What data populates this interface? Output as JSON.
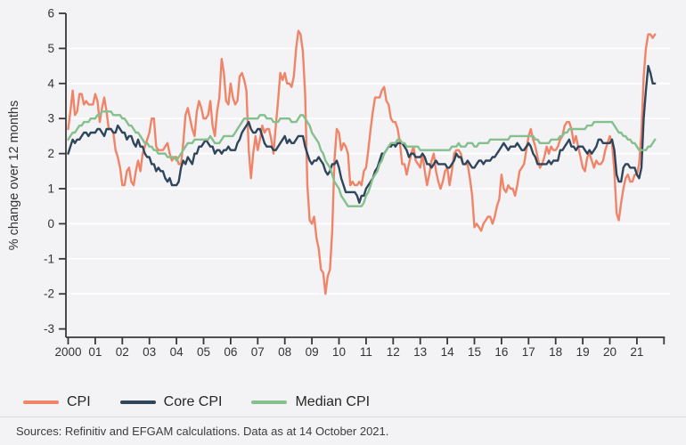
{
  "page": {
    "background": "#f3f3f5",
    "source_note": "Sources: Refinitiv and EFGAM calculations. Data as at 14 October 2021."
  },
  "chart_data": {
    "type": "line",
    "ylabel": "% change over 12 months",
    "ylim": [
      -3,
      6
    ],
    "yticks": [
      6,
      5,
      4,
      3,
      2,
      1,
      0,
      -1,
      -2,
      -3
    ],
    "xlim": [
      2000,
      2022
    ],
    "xtick_labels": [
      "2000",
      "01",
      "02",
      "03",
      "04",
      "05",
      "06",
      "07",
      "08",
      "09",
      "10",
      "11",
      "12",
      "13",
      "14",
      "15",
      "16",
      "17",
      "18",
      "19",
      "20",
      "21"
    ],
    "x_start": 2000.0,
    "x_step": "monthly",
    "grid": "horizontal-white",
    "legend_position": "bottom-left",
    "colors": {
      "background": "#f3f3f5",
      "gridline": "#ffffff",
      "axis": "#38383a",
      "tick_label": "#333333"
    },
    "series": [
      {
        "name": "CPI",
        "color": "#ef8468",
        "values": [
          2.7,
          3.2,
          3.8,
          3.1,
          3.2,
          3.7,
          3.7,
          3.4,
          3.5,
          3.4,
          3.4,
          3.4,
          3.7,
          3.5,
          2.9,
          3.3,
          3.6,
          3.2,
          2.7,
          2.7,
          2.6,
          2.1,
          1.9,
          1.6,
          1.1,
          1.1,
          1.5,
          1.6,
          1.2,
          1.1,
          1.5,
          1.8,
          1.5,
          2.0,
          2.2,
          2.4,
          2.6,
          3.0,
          3.0,
          2.2,
          2.1,
          2.1,
          2.1,
          2.2,
          2.3,
          2.0,
          1.8,
          1.9,
          1.9,
          1.7,
          1.7,
          2.3,
          3.1,
          3.3,
          3.0,
          2.7,
          2.5,
          3.2,
          3.5,
          3.3,
          3.0,
          3.0,
          3.1,
          3.5,
          2.8,
          2.5,
          3.2,
          3.6,
          4.7,
          4.3,
          3.5,
          3.4,
          4.0,
          3.6,
          3.4,
          3.5,
          4.2,
          4.3,
          4.1,
          3.8,
          2.1,
          1.3,
          2.0,
          2.5,
          2.1,
          2.4,
          2.8,
          2.6,
          2.7,
          2.7,
          2.4,
          2.0,
          2.8,
          3.5,
          4.3,
          4.1,
          4.3,
          4.0,
          4.0,
          3.9,
          4.2,
          5.0,
          5.5,
          5.4,
          4.9,
          3.7,
          1.1,
          0.1,
          0.0,
          0.2,
          -0.4,
          -0.7,
          -1.3,
          -1.4,
          -2.0,
          -1.5,
          -1.3,
          -0.2,
          1.8,
          2.7,
          2.6,
          2.1,
          2.3,
          2.2,
          2.0,
          1.1,
          1.2,
          1.1,
          1.1,
          1.2,
          1.1,
          1.5,
          1.6,
          2.1,
          2.7,
          3.2,
          3.6,
          3.6,
          3.6,
          3.8,
          3.9,
          3.5,
          3.4,
          3.0,
          2.9,
          2.9,
          2.7,
          2.3,
          1.7,
          1.7,
          1.4,
          1.7,
          2.0,
          2.2,
          1.8,
          1.7,
          1.6,
          2.0,
          1.5,
          1.1,
          1.4,
          1.8,
          2.0,
          1.5,
          1.2,
          1.0,
          1.2,
          1.5,
          1.6,
          1.1,
          1.5,
          2.0,
          2.1,
          2.1,
          2.0,
          1.7,
          1.7,
          1.7,
          1.3,
          0.8,
          -0.1,
          0.0,
          -0.1,
          -0.2,
          0.0,
          0.1,
          0.2,
          0.2,
          0.0,
          0.2,
          0.5,
          0.7,
          1.4,
          1.0,
          0.9,
          1.1,
          1.0,
          1.0,
          0.8,
          1.1,
          1.5,
          1.6,
          1.7,
          2.1,
          2.5,
          2.7,
          2.4,
          2.2,
          1.9,
          1.6,
          1.7,
          1.9,
          2.2,
          2.0,
          2.2,
          2.1,
          2.1,
          2.2,
          2.4,
          2.5,
          2.8,
          2.9,
          2.9,
          2.7,
          2.3,
          2.5,
          2.2,
          1.9,
          1.6,
          1.5,
          1.9,
          2.0,
          1.8,
          1.6,
          1.8,
          1.7,
          1.7,
          1.8,
          2.1,
          2.3,
          2.5,
          2.3,
          1.5,
          0.3,
          0.1,
          0.6,
          1.0,
          1.3,
          1.4,
          1.2,
          1.2,
          1.4,
          1.4,
          1.7,
          2.6,
          4.2,
          5.0,
          5.4,
          5.4,
          5.3,
          5.4
        ]
      },
      {
        "name": "Core CPI",
        "color": "#2f455c",
        "values": [
          2.0,
          2.2,
          2.4,
          2.3,
          2.4,
          2.4,
          2.5,
          2.6,
          2.6,
          2.5,
          2.6,
          2.6,
          2.6,
          2.7,
          2.7,
          2.6,
          2.5,
          2.7,
          2.7,
          2.7,
          2.6,
          2.6,
          2.8,
          2.7,
          2.6,
          2.6,
          2.4,
          2.5,
          2.5,
          2.3,
          2.2,
          2.4,
          2.2,
          2.2,
          2.0,
          1.9,
          1.9,
          1.7,
          1.7,
          1.5,
          1.6,
          1.5,
          1.5,
          1.3,
          1.2,
          1.3,
          1.1,
          1.1,
          1.1,
          1.2,
          1.6,
          1.8,
          1.7,
          1.9,
          1.8,
          1.7,
          2.0,
          2.0,
          2.2,
          2.2,
          2.3,
          2.4,
          2.3,
          2.2,
          2.2,
          2.0,
          2.1,
          2.1,
          2.0,
          2.1,
          2.1,
          2.2,
          2.1,
          2.1,
          2.1,
          2.3,
          2.4,
          2.6,
          2.7,
          2.8,
          2.9,
          2.7,
          2.6,
          2.6,
          2.7,
          2.7,
          2.5,
          2.3,
          2.2,
          2.2,
          2.2,
          2.1,
          2.1,
          2.2,
          2.3,
          2.4,
          2.5,
          2.3,
          2.4,
          2.3,
          2.3,
          2.4,
          2.5,
          2.5,
          2.5,
          2.2,
          2.0,
          1.8,
          1.7,
          1.8,
          1.8,
          1.9,
          1.8,
          1.7,
          1.5,
          1.4,
          1.5,
          1.7,
          1.7,
          1.8,
          1.6,
          1.3,
          1.1,
          0.9,
          0.9,
          0.9,
          0.9,
          0.9,
          0.8,
          0.6,
          0.8,
          0.8,
          1.0,
          1.1,
          1.2,
          1.3,
          1.5,
          1.6,
          1.8,
          2.0,
          2.0,
          2.1,
          2.2,
          2.2,
          2.3,
          2.2,
          2.3,
          2.3,
          2.3,
          2.2,
          2.1,
          1.9,
          2.0,
          2.0,
          1.9,
          1.9,
          1.9,
          2.0,
          1.9,
          1.7,
          1.7,
          1.6,
          1.7,
          1.8,
          1.7,
          1.7,
          1.7,
          1.7,
          1.6,
          1.6,
          1.7,
          1.8,
          2.0,
          1.9,
          1.9,
          1.7,
          1.7,
          1.8,
          1.7,
          1.6,
          1.6,
          1.7,
          1.8,
          1.8,
          1.7,
          1.8,
          1.8,
          1.8,
          1.9,
          1.9,
          2.0,
          2.1,
          2.2,
          2.3,
          2.2,
          2.1,
          2.2,
          2.2,
          2.2,
          2.3,
          2.2,
          2.1,
          2.1,
          2.2,
          2.3,
          2.2,
          2.0,
          1.9,
          1.7,
          1.7,
          1.7,
          1.7,
          1.7,
          1.8,
          1.7,
          1.8,
          1.8,
          1.8,
          2.1,
          2.1,
          2.2,
          2.3,
          2.4,
          2.2,
          2.2,
          2.1,
          2.2,
          2.2,
          2.2,
          2.1,
          2.0,
          2.1,
          2.0,
          2.1,
          2.2,
          2.4,
          2.4,
          2.3,
          2.3,
          2.3,
          2.3,
          2.4,
          2.1,
          1.4,
          1.2,
          1.2,
          1.6,
          1.7,
          1.7,
          1.6,
          1.6,
          1.6,
          1.4,
          1.3,
          1.6,
          3.0,
          3.8,
          4.5,
          4.3,
          4.0,
          4.0
        ]
      },
      {
        "name": "Median CPI",
        "color": "#86bf8e",
        "values": [
          2.4,
          2.5,
          2.6,
          2.6,
          2.7,
          2.8,
          2.8,
          2.9,
          2.9,
          2.9,
          3.0,
          3.0,
          3.0,
          3.1,
          3.1,
          3.2,
          3.2,
          3.2,
          3.2,
          3.2,
          3.1,
          3.1,
          3.1,
          3.1,
          3.0,
          3.0,
          2.9,
          2.8,
          2.8,
          2.7,
          2.6,
          2.6,
          2.5,
          2.4,
          2.3,
          2.3,
          2.2,
          2.2,
          2.1,
          2.1,
          2.0,
          2.0,
          2.0,
          2.0,
          1.9,
          1.9,
          1.9,
          1.9,
          1.8,
          1.9,
          2.0,
          2.1,
          2.2,
          2.3,
          2.3,
          2.3,
          2.4,
          2.4,
          2.4,
          2.4,
          2.4,
          2.4,
          2.4,
          2.5,
          2.4,
          2.3,
          2.3,
          2.3,
          2.4,
          2.5,
          2.5,
          2.5,
          2.5,
          2.5,
          2.6,
          2.7,
          2.8,
          2.9,
          3.0,
          3.0,
          3.0,
          3.0,
          3.0,
          3.0,
          3.0,
          3.1,
          3.1,
          3.1,
          3.0,
          3.0,
          3.0,
          2.9,
          2.9,
          2.9,
          3.0,
          3.0,
          3.0,
          3.0,
          3.0,
          2.9,
          2.9,
          2.9,
          3.0,
          3.1,
          3.1,
          3.0,
          2.9,
          2.8,
          2.6,
          2.5,
          2.4,
          2.3,
          2.1,
          2.0,
          1.8,
          1.7,
          1.6,
          1.4,
          1.2,
          1.1,
          1.0,
          0.8,
          0.7,
          0.6,
          0.5,
          0.5,
          0.5,
          0.5,
          0.5,
          0.5,
          0.5,
          0.6,
          0.8,
          0.9,
          1.1,
          1.3,
          1.4,
          1.5,
          1.7,
          1.8,
          2.0,
          2.1,
          2.2,
          2.3,
          2.3,
          2.3,
          2.4,
          2.4,
          2.3,
          2.3,
          2.2,
          2.2,
          2.2,
          2.2,
          2.2,
          2.2,
          2.1,
          2.1,
          2.1,
          2.1,
          2.1,
          2.1,
          2.1,
          2.1,
          2.1,
          2.1,
          2.1,
          2.1,
          2.1,
          2.1,
          2.2,
          2.2,
          2.2,
          2.3,
          2.2,
          2.2,
          2.2,
          2.3,
          2.3,
          2.3,
          2.2,
          2.2,
          2.3,
          2.3,
          2.3,
          2.3,
          2.3,
          2.4,
          2.4,
          2.4,
          2.4,
          2.4,
          2.4,
          2.4,
          2.4,
          2.4,
          2.5,
          2.5,
          2.5,
          2.5,
          2.5,
          2.5,
          2.5,
          2.5,
          2.5,
          2.5,
          2.5,
          2.4,
          2.4,
          2.3,
          2.3,
          2.3,
          2.3,
          2.3,
          2.4,
          2.4,
          2.4,
          2.4,
          2.5,
          2.5,
          2.6,
          2.6,
          2.7,
          2.7,
          2.7,
          2.7,
          2.7,
          2.7,
          2.7,
          2.7,
          2.8,
          2.8,
          2.8,
          2.9,
          2.9,
          2.9,
          2.9,
          2.9,
          2.9,
          2.9,
          2.9,
          2.9,
          2.8,
          2.7,
          2.6,
          2.6,
          2.5,
          2.5,
          2.4,
          2.4,
          2.3,
          2.3,
          2.2,
          2.1,
          2.1,
          2.1,
          2.1,
          2.2,
          2.2,
          2.3,
          2.4
        ]
      }
    ]
  }
}
